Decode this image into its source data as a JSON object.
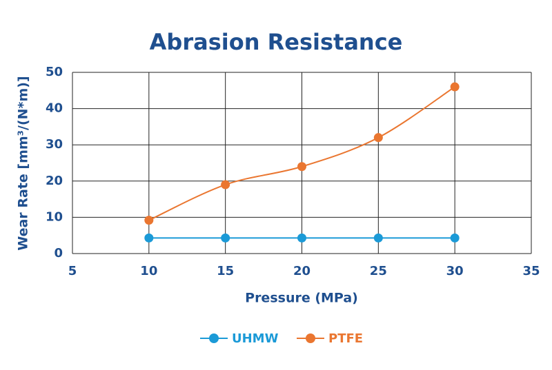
{
  "chart_data": {
    "type": "line",
    "title": "Abrasion Resistance",
    "x_label": "Pressure (MPa)",
    "y_label": "Wear Rate [mm³/(N*m)]",
    "x": [
      10,
      15,
      20,
      25,
      30
    ],
    "series": [
      {
        "name": "UHMW",
        "color": "#1b9ad7",
        "values": [
          4.3,
          4.3,
          4.3,
          4.3,
          4.3
        ]
      },
      {
        "name": "PTFE",
        "color": "#ea7630",
        "values": [
          9.2,
          19,
          24,
          32,
          46
        ]
      }
    ],
    "xlim": [
      5,
      35
    ],
    "xticks": [
      5,
      10,
      15,
      20,
      25,
      30,
      35
    ],
    "ylim": [
      0,
      50
    ],
    "yticks": [
      0,
      10,
      20,
      30,
      40,
      50
    ],
    "grid": true,
    "smooth": true,
    "legend": "bottom"
  }
}
